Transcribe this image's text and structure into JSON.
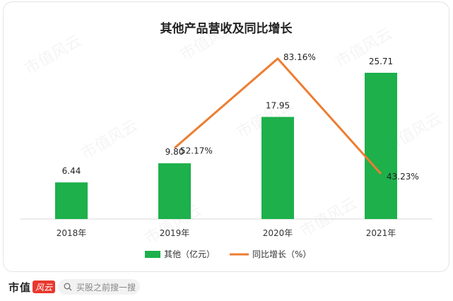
{
  "chart_data": {
    "type": "bar",
    "title": "其他产品营收及同比增长",
    "categories": [
      "2018年",
      "2019年",
      "2020年",
      "2021年"
    ],
    "series": [
      {
        "name": "其他（亿元）",
        "type": "bar",
        "color": "#1db04b",
        "values": [
          6.44,
          9.8,
          17.95,
          25.71
        ],
        "labels": [
          "6.44",
          "9.80",
          "17.95",
          "25.71"
        ]
      },
      {
        "name": "同比增长（%）",
        "type": "line",
        "color": "#ed7d31",
        "values": [
          null,
          52.17,
          83.16,
          43.23
        ],
        "labels": [
          "",
          "52.17%",
          "83.16%",
          "43.23%"
        ]
      }
    ],
    "ylim": [
      0,
      30
    ],
    "y2lim": [
      0,
      90
    ],
    "legend": "bottom",
    "grid": false
  },
  "footer": {
    "brand_name": "市值",
    "brand_mark": "风云",
    "search_placeholder": "买股之前搜一搜"
  },
  "watermark_text": "市值风云"
}
